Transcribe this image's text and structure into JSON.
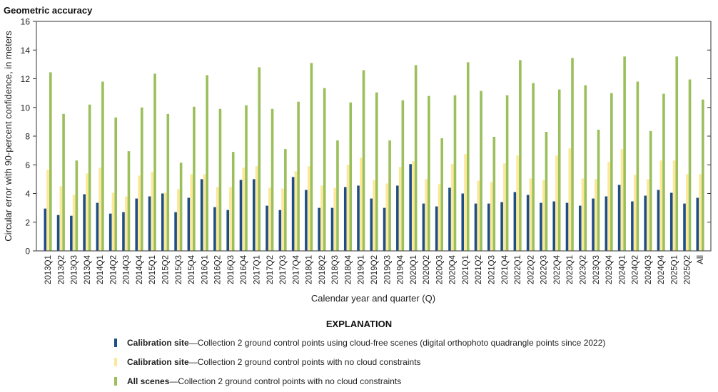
{
  "chart_data": {
    "type": "bar",
    "title": "Geometric accuracy",
    "xlabel": "Calendar year and quarter (Q)",
    "ylabel": "Circular error with 90-percent confidence, in meters",
    "ylim": [
      0,
      16
    ],
    "yticks": [
      0,
      2,
      4,
      6,
      8,
      10,
      12,
      14,
      16
    ],
    "grid": false,
    "legend_title": "EXPLANATION",
    "legend_placement": "bottom",
    "categories": [
      "2013Q1",
      "2013Q2",
      "2013Q3",
      "2013Q4",
      "2014Q1",
      "2014Q2",
      "2014Q3",
      "2014Q4",
      "2015Q1",
      "2015Q2",
      "2015Q3",
      "2015Q4",
      "2016Q1",
      "2016Q2",
      "2016Q3",
      "2016Q4",
      "2017Q1",
      "2017Q2",
      "2017Q3",
      "2017Q4",
      "2018Q1",
      "2018Q2",
      "2018Q3",
      "2018Q4",
      "2019Q1",
      "2019Q2",
      "2019Q3",
      "2019Q4",
      "2020Q1",
      "2020Q2",
      "2020Q3",
      "2020Q4",
      "2021Q1",
      "2021Q2",
      "2021Q3",
      "2021Q4",
      "2022Q1",
      "2022Q2",
      "2022Q3",
      "2022Q4",
      "2023Q1",
      "2023Q2",
      "2023Q3",
      "2023Q4",
      "2024Q1",
      "2024Q2",
      "2024Q3",
      "2024Q4",
      "2025Q1",
      "2025Q2",
      "All"
    ],
    "series": [
      {
        "name": "Calibration site",
        "description": "—Collection 2 ground control points using cloud-free scenes (digital orthophoto quadrangle points since 2022)",
        "color": "#1f4e85",
        "values": [
          2.95,
          2.5,
          2.45,
          3.95,
          3.35,
          2.6,
          2.7,
          3.65,
          3.8,
          4.0,
          2.7,
          3.7,
          5.0,
          3.05,
          2.85,
          4.95,
          5.0,
          3.15,
          2.85,
          5.15,
          4.25,
          3.0,
          3.0,
          4.45,
          4.55,
          3.65,
          3.0,
          4.55,
          6.05,
          3.3,
          3.1,
          4.4,
          4.0,
          3.3,
          3.3,
          3.4,
          4.1,
          3.9,
          3.35,
          3.45,
          3.35,
          3.15,
          3.65,
          3.8,
          4.6,
          3.45,
          3.85,
          4.25,
          4.05,
          3.3,
          3.7
        ]
      },
      {
        "name": "Calibration site",
        "description": "—Collection 2 ground control points with no cloud constraints",
        "color": "#fbe89a",
        "values": [
          5.65,
          4.5,
          3.9,
          5.4,
          5.8,
          4.05,
          3.8,
          5.25,
          5.5,
          4.05,
          4.3,
          5.35,
          5.35,
          4.45,
          4.45,
          5.8,
          5.9,
          4.4,
          4.35,
          5.55,
          5.9,
          4.55,
          4.4,
          6.0,
          6.5,
          4.95,
          4.7,
          5.85,
          6.25,
          5.0,
          4.65,
          6.05,
          6.75,
          4.9,
          4.8,
          6.1,
          6.65,
          5.05,
          4.95,
          6.65,
          7.15,
          5.05,
          5.0,
          6.2,
          7.1,
          5.3,
          5.0,
          6.3,
          6.3,
          5.35,
          5.35
        ]
      },
      {
        "name": "All scenes",
        "description": "—Collection 2 ground control points with no cloud constraints",
        "color": "#9bbf5a",
        "values": [
          12.45,
          9.55,
          6.3,
          10.2,
          11.8,
          9.3,
          6.95,
          10.0,
          12.35,
          9.55,
          6.15,
          10.05,
          12.25,
          9.9,
          6.9,
          10.15,
          12.8,
          9.9,
          7.1,
          10.4,
          13.1,
          11.35,
          7.7,
          10.35,
          12.6,
          11.05,
          7.7,
          10.5,
          12.95,
          10.8,
          7.85,
          10.85,
          13.15,
          11.15,
          7.95,
          10.85,
          13.3,
          11.7,
          8.3,
          11.25,
          13.45,
          11.55,
          8.45,
          11.0,
          13.55,
          11.8,
          8.35,
          10.95,
          13.55,
          11.95,
          10.55
        ]
      }
    ]
  }
}
